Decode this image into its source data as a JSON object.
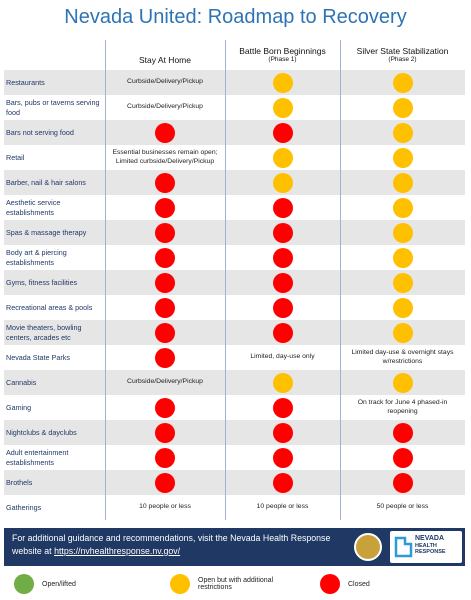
{
  "header": {
    "title": "Nevada United: Roadmap to Recovery"
  },
  "columns": [
    {
      "title": "Stay At Home"
    },
    {
      "title": "Battle Born Beginnings",
      "subtitle": "(Phase 1)"
    },
    {
      "title": "Silver State Stabilization",
      "subtitle": "(Phase 2)"
    }
  ],
  "statuses": {
    "open": "#70ad47",
    "restricted": "#ffc000",
    "closed": "#ff0000"
  },
  "rows": [
    {
      "label": "Restaurants",
      "cells": [
        {
          "text": "Curbside/Delivery/Pickup"
        },
        "restricted",
        "restricted"
      ]
    },
    {
      "label": "Bars, pubs or taverns serving food",
      "cells": [
        {
          "text": "Curbside/Delivery/Pickup"
        },
        "restricted",
        "restricted"
      ]
    },
    {
      "label": "Bars not serving food",
      "cells": [
        "closed",
        "closed",
        "restricted"
      ]
    },
    {
      "label": "Retail",
      "cells": [
        {
          "text": "Essential businesses remain open; Limited curbside/Delivery/Pickup"
        },
        "restricted",
        "restricted"
      ]
    },
    {
      "label": "Barber, nail & hair salons",
      "cells": [
        "closed",
        "restricted",
        "restricted"
      ]
    },
    {
      "label": "Aesthetic service establishments",
      "cells": [
        "closed",
        "closed",
        "restricted"
      ]
    },
    {
      "label": "Spas & massage therapy",
      "cells": [
        "closed",
        "closed",
        "restricted"
      ]
    },
    {
      "label": "Body art & piercing establishments",
      "cells": [
        "closed",
        "closed",
        "restricted"
      ]
    },
    {
      "label": "Gyms, fitness facilities",
      "cells": [
        "closed",
        "closed",
        "restricted"
      ]
    },
    {
      "label": "Recreational areas & pools",
      "cells": [
        "closed",
        "closed",
        "restricted"
      ]
    },
    {
      "label": "Movie theaters, bowling centers, arcades etc",
      "cells": [
        "closed",
        "closed",
        "restricted"
      ]
    },
    {
      "label": "Nevada State Parks",
      "cells": [
        "closed",
        {
          "text": "Limited, day-use only"
        },
        {
          "text": "Limited day-use & overnight stays w/restrictions"
        }
      ]
    },
    {
      "label": "Cannabis",
      "cells": [
        {
          "text": "Curbside/Delivery/Pickup"
        },
        "restricted",
        "restricted"
      ]
    },
    {
      "label": "Gaming",
      "cells": [
        "closed",
        "closed",
        {
          "text": "On track for June 4 phased-in reopening"
        }
      ]
    },
    {
      "label": "Nightclubs & dayclubs",
      "cells": [
        "closed",
        "closed",
        "closed"
      ]
    },
    {
      "label": "Adult entertainment establishments",
      "cells": [
        "closed",
        "closed",
        "closed"
      ]
    },
    {
      "label": "Brothels",
      "cells": [
        "closed",
        "closed",
        "closed"
      ]
    },
    {
      "label": "Gatherings",
      "cells": [
        {
          "text": "10 people or less"
        },
        {
          "text": "10 people or less"
        },
        {
          "text": "50 people or less"
        }
      ]
    }
  ],
  "footer": {
    "text": "For additional guidance and recommendations, visit the Nevada Health Response website at",
    "link": "https://nvhealthresponse.nv.gov/",
    "logo_line1": "NEVADA",
    "logo_line2": "HEALTH",
    "logo_line3": "RESPONSE"
  },
  "legend": [
    {
      "status": "open",
      "label": "Open/lifted"
    },
    {
      "status": "restricted",
      "label": "Open but with additional restrictions"
    },
    {
      "status": "closed",
      "label": "Closed"
    }
  ]
}
